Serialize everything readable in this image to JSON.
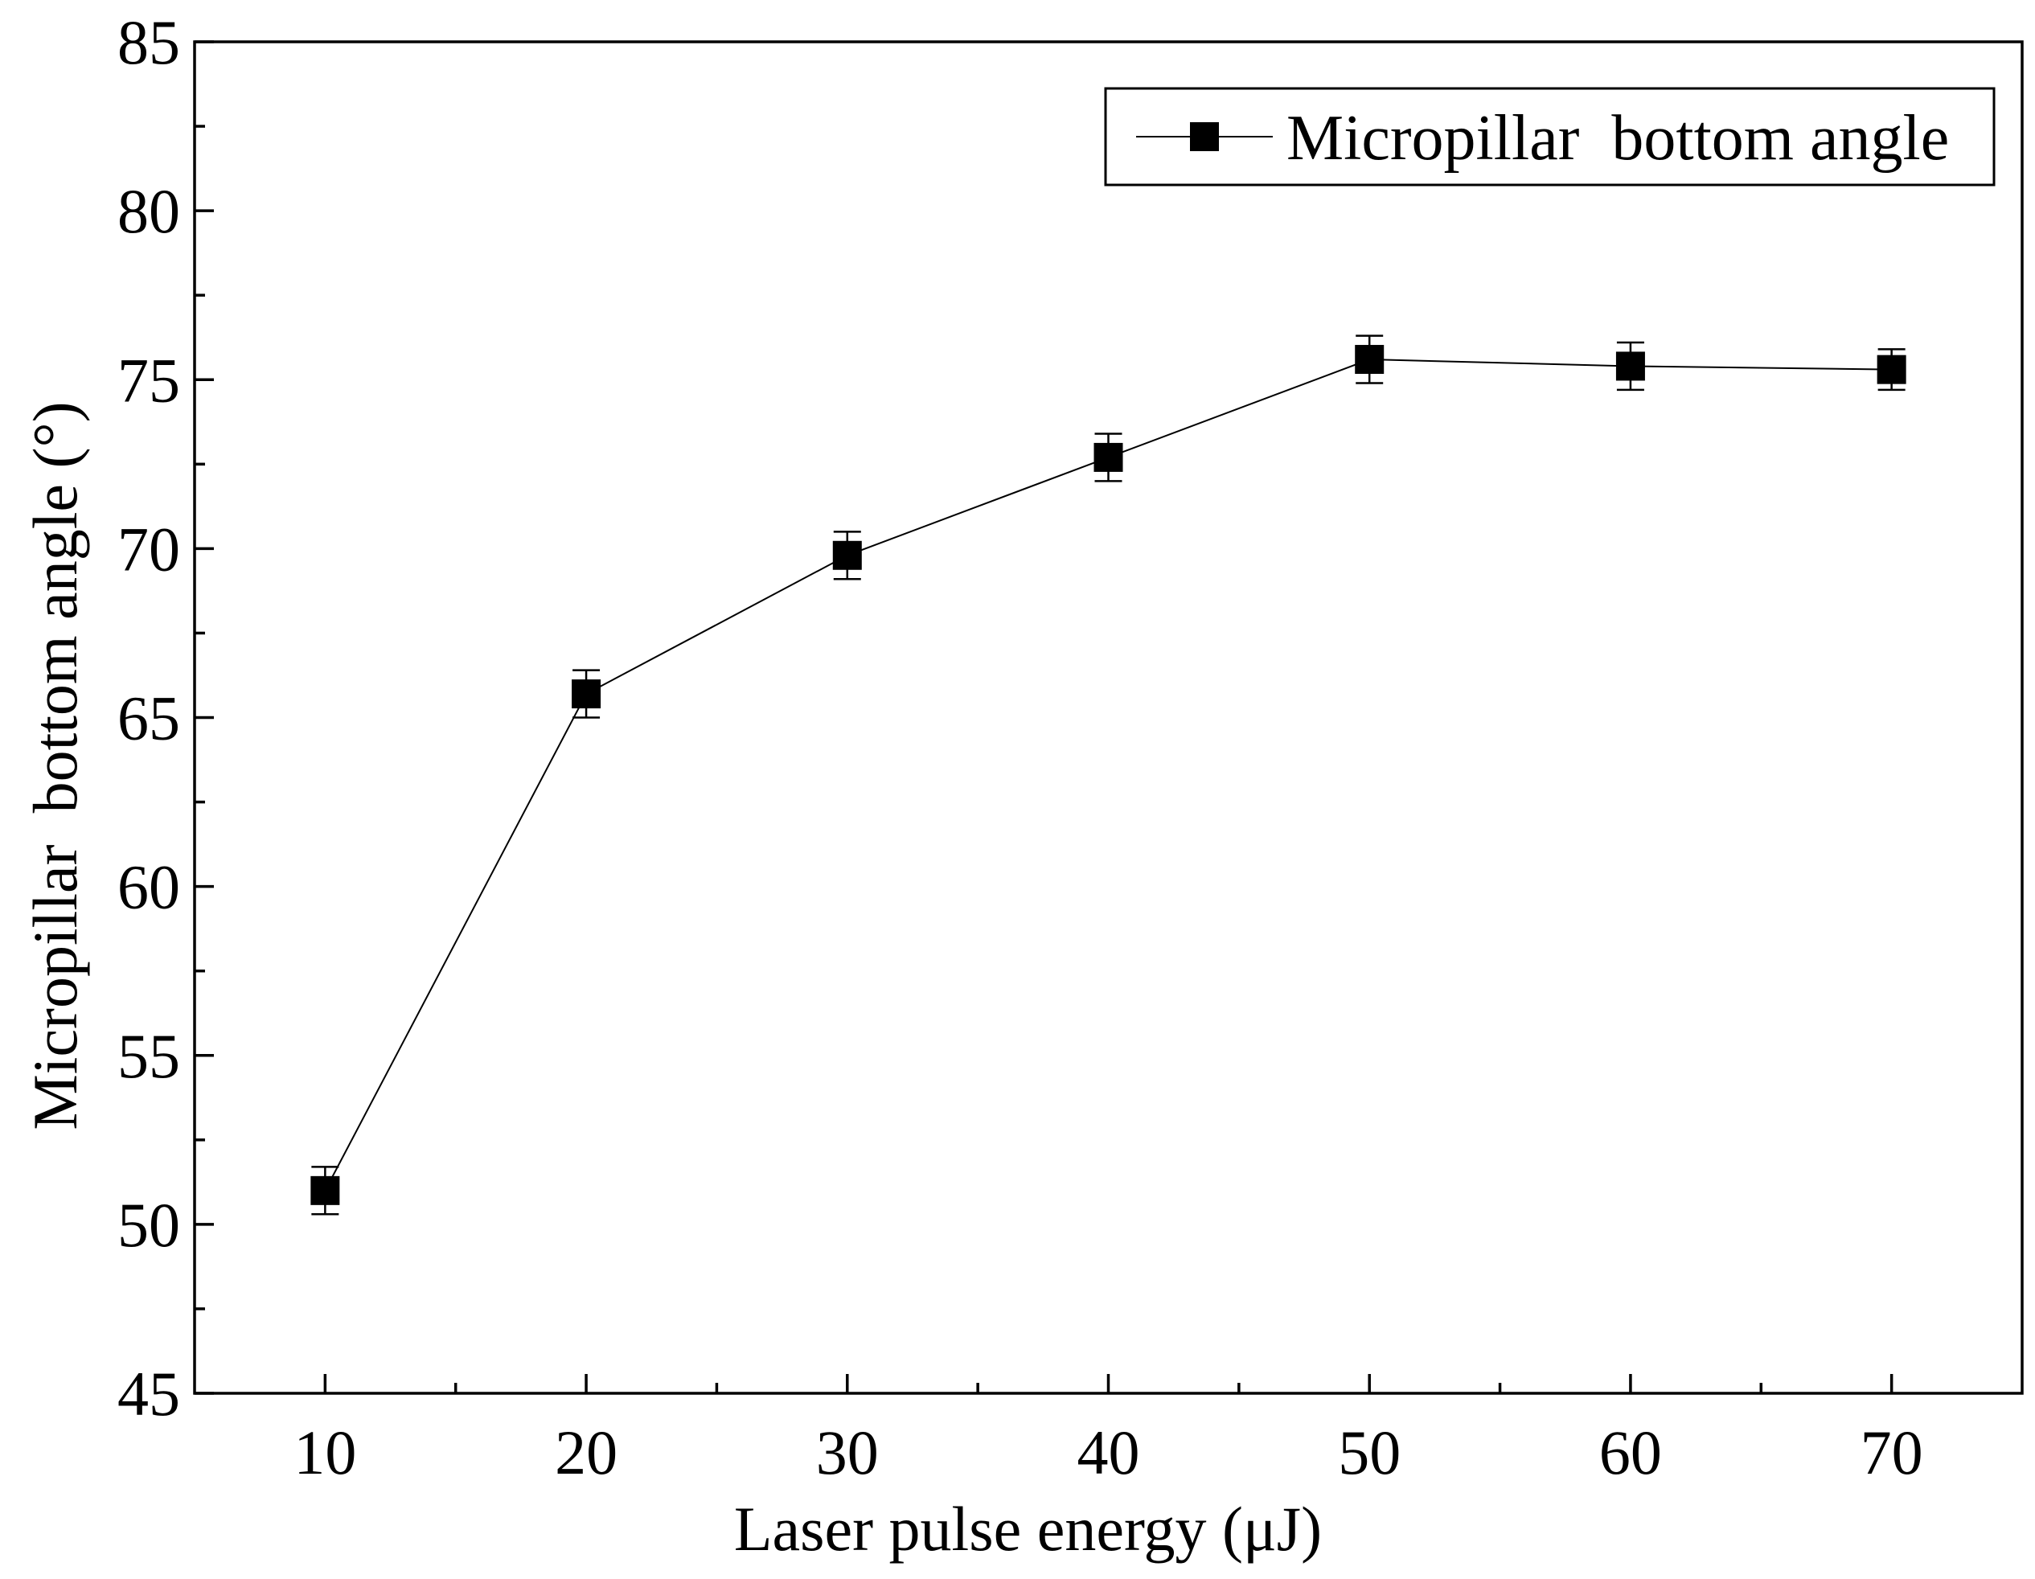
{
  "chart_data": {
    "type": "line",
    "title": "",
    "xlabel": "Laser pulse energy (μJ)",
    "ylabel": "Micropillar  bottom angle (°)",
    "xlim": [
      5,
      75
    ],
    "ylim": [
      45,
      85
    ],
    "x_major_ticks": [
      10,
      20,
      30,
      40,
      50,
      60,
      70
    ],
    "x_minor_ticks": [
      15,
      25,
      35,
      45,
      55,
      65
    ],
    "y_major_ticks": [
      45,
      50,
      55,
      60,
      65,
      70,
      75,
      80,
      85
    ],
    "y_minor_ticks": [
      47.5,
      52.5,
      57.5,
      62.5,
      67.5,
      72.5,
      77.5,
      82.5
    ],
    "grid": false,
    "legend_position": "top-right",
    "series": [
      {
        "name": "Micropillar  bottom angle",
        "marker": "square",
        "color": "#000000",
        "x": [
          10,
          20,
          30,
          40,
          50,
          60,
          70
        ],
        "y": [
          51.0,
          65.7,
          69.8,
          72.7,
          75.6,
          75.4,
          75.3
        ],
        "error": [
          0.7,
          0.7,
          0.7,
          0.7,
          0.7,
          0.7,
          0.6
        ]
      }
    ]
  }
}
